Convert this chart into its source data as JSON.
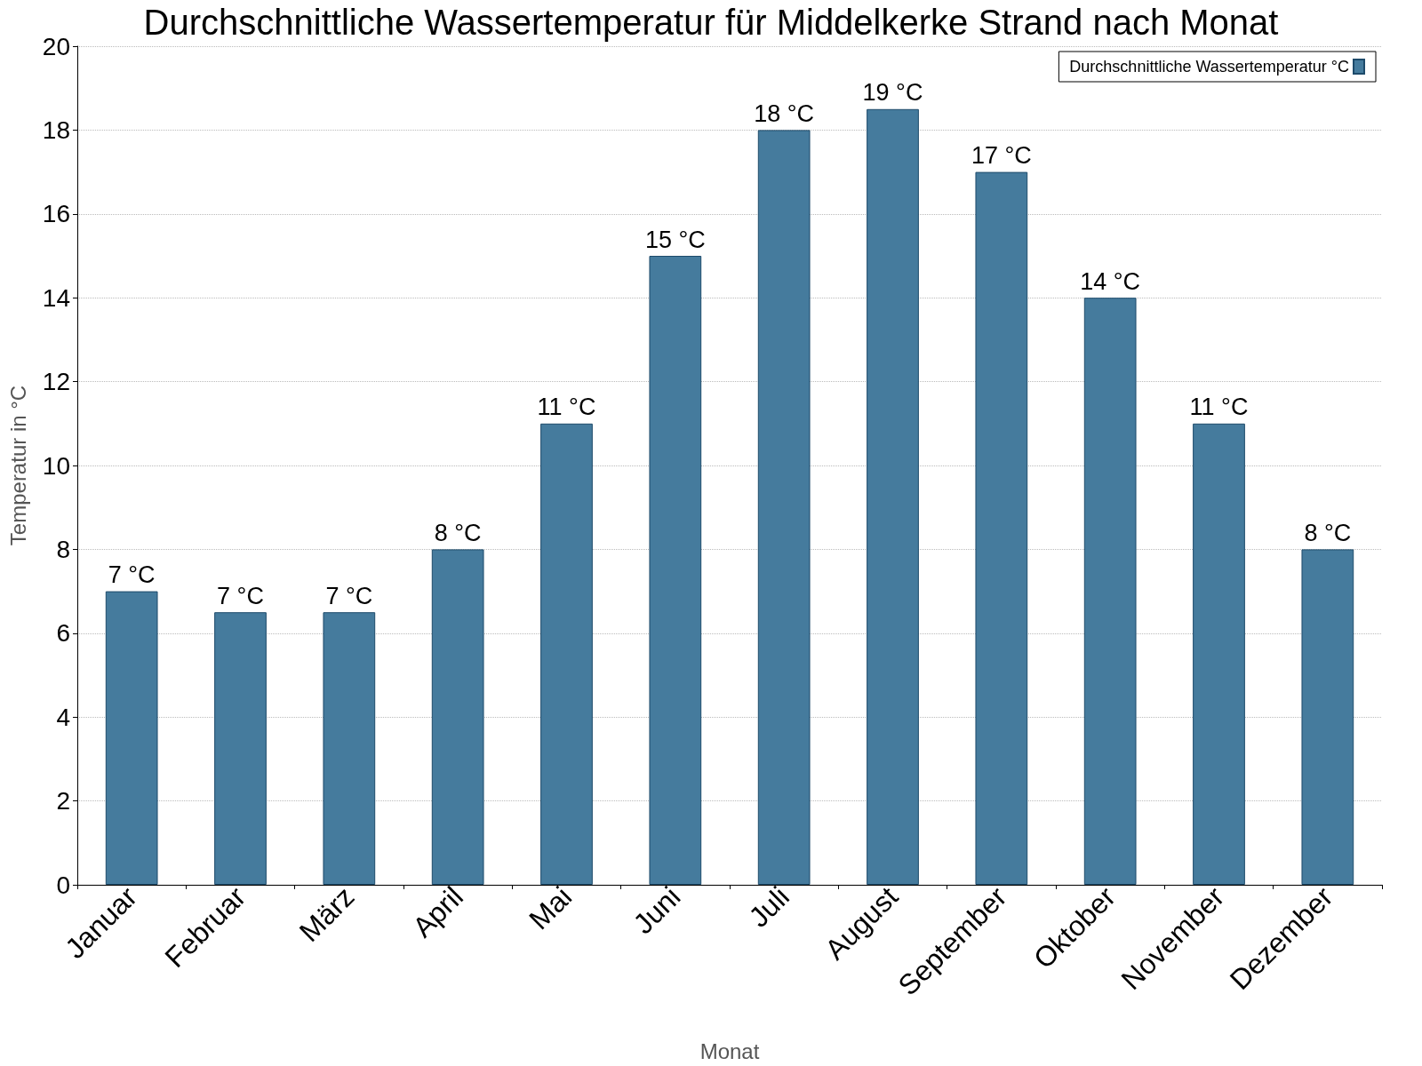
{
  "chart_data": {
    "type": "bar",
    "title": "Durchschnittliche Wassertemperatur für Middelkerke Strand nach Monat",
    "xlabel": "Monat",
    "ylabel": "Temperatur in °C",
    "categories": [
      "Januar",
      "Februar",
      "März",
      "April",
      "Mai",
      "Juni",
      "Juli",
      "August",
      "September",
      "Oktober",
      "November",
      "Dezember"
    ],
    "series": [
      {
        "name": "Durchschnittliche Wassertemperatur °C",
        "color": "#457b9d",
        "values": [
          7,
          6.5,
          6.5,
          8,
          11,
          15,
          18,
          18.5,
          17,
          14,
          11,
          8
        ],
        "value_labels": [
          "7 °C",
          "7 °C",
          "7 °C",
          "8 °C",
          "11 °C",
          "15 °C",
          "18 °C",
          "19 °C",
          "17 °C",
          "14 °C",
          "11 °C",
          "8 °C"
        ]
      }
    ],
    "ylim": [
      0,
      20
    ],
    "yticks": [
      0,
      2,
      4,
      6,
      8,
      10,
      12,
      14,
      16,
      18,
      20
    ],
    "grid": "y",
    "legend": "top right"
  }
}
